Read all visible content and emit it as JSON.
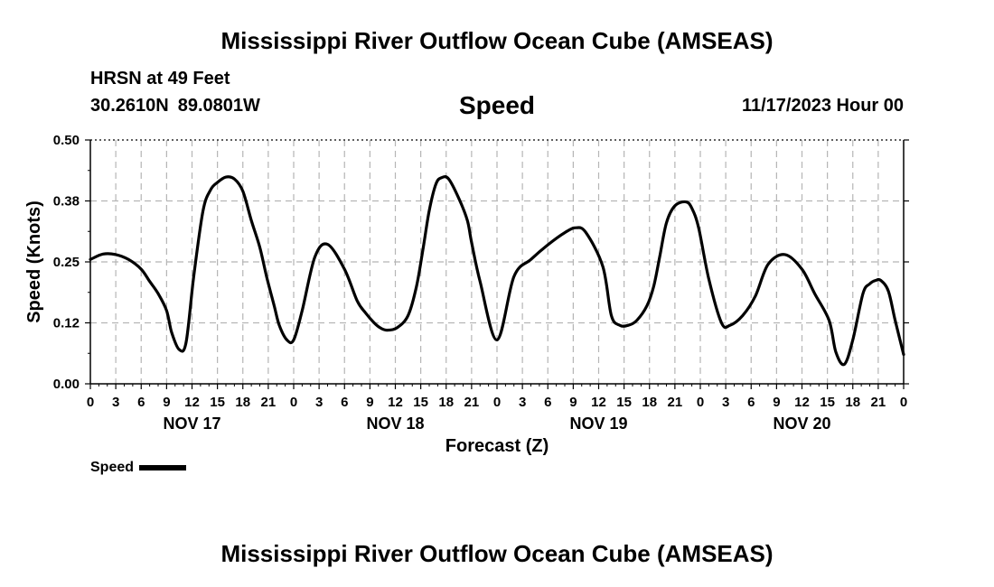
{
  "page": {
    "title_top": "Mississippi River Outflow Ocean Cube (AMSEAS)",
    "title_bottom": "Mississippi River Outflow Ocean Cube (AMSEAS)",
    "station": "HRSN at 49 Feet",
    "latitude": "30.2610N",
    "longitude": "89.0801W",
    "variable": "Speed",
    "datetime": "11/17/2023 Hour 00",
    "legend_label": "Speed"
  },
  "chart_data": {
    "type": "line",
    "title": "Speed",
    "xlabel": "Forecast (Z)",
    "ylabel": "Speed (Knots)",
    "xlim": [
      0,
      96
    ],
    "ylim": [
      0,
      0.5
    ],
    "yticks": [
      0,
      0.125,
      0.25,
      0.375,
      0.5
    ],
    "ytick_labels": [
      "0.00",
      "0.12",
      "0.25",
      "0.38",
      "0.50"
    ],
    "xtick_hours": [
      0,
      3,
      6,
      9,
      12,
      15,
      18,
      21,
      24,
      27,
      30,
      33,
      36,
      39,
      42,
      45,
      48,
      51,
      54,
      57,
      60,
      63,
      66,
      69,
      72,
      75,
      78,
      81,
      84,
      87,
      90,
      93,
      96
    ],
    "xtick_labels": [
      "0",
      "3",
      "6",
      "9",
      "12",
      "15",
      "18",
      "21",
      "0",
      "3",
      "6",
      "9",
      "12",
      "15",
      "18",
      "21",
      "0",
      "3",
      "6",
      "9",
      "12",
      "15",
      "18",
      "21",
      "0",
      "3",
      "6",
      "9",
      "12",
      "15",
      "18",
      "21",
      "0"
    ],
    "date_labels": [
      {
        "hour": 12,
        "label": "NOV 17"
      },
      {
        "hour": 36,
        "label": "NOV 18"
      },
      {
        "hour": 60,
        "label": "NOV 19"
      },
      {
        "hour": 84,
        "label": "NOV 20"
      }
    ],
    "grid": true,
    "legend": "bottom-left",
    "series": [
      {
        "name": "Speed",
        "color": "#000000",
        "x": [
          0,
          1.5,
          3,
          4.5,
          6,
          7,
          8,
          9,
          9.6,
          10.5,
          11.3,
          12.2,
          13.3,
          14.2,
          15,
          16,
          17,
          18,
          19,
          20,
          20.8,
          21.7,
          22.3,
          23.2,
          24,
          25,
          26.5,
          28,
          30,
          31.5,
          32.5,
          33.5,
          34.2,
          35,
          36.2,
          37.5,
          38.5,
          39.3,
          40,
          40.8,
          41.5,
          42.3,
          43.5,
          44.5,
          45,
          46,
          48,
          50,
          52,
          54,
          56,
          57.3,
          58.5,
          60.5,
          61.5,
          62.5,
          63.5,
          64.5,
          65.7,
          66.5,
          67.2,
          68,
          69,
          70.3,
          71,
          71.8,
          73,
          74.5,
          75.5,
          77,
          78.5,
          80,
          82,
          84,
          85.5,
          87.2,
          88,
          89,
          90,
          91.2,
          92,
          92.7,
          93.3,
          94.2,
          95,
          96
        ],
        "y": [
          0.255,
          0.266,
          0.265,
          0.255,
          0.235,
          0.21,
          0.185,
          0.15,
          0.105,
          0.07,
          0.085,
          0.22,
          0.355,
          0.398,
          0.413,
          0.424,
          0.42,
          0.395,
          0.335,
          0.28,
          0.22,
          0.16,
          0.12,
          0.09,
          0.09,
          0.15,
          0.26,
          0.286,
          0.235,
          0.17,
          0.145,
          0.125,
          0.115,
          0.11,
          0.115,
          0.14,
          0.2,
          0.28,
          0.355,
          0.41,
          0.423,
          0.42,
          0.38,
          0.335,
          0.29,
          0.21,
          0.09,
          0.22,
          0.255,
          0.285,
          0.31,
          0.32,
          0.31,
          0.24,
          0.14,
          0.12,
          0.12,
          0.13,
          0.16,
          0.2,
          0.26,
          0.33,
          0.365,
          0.373,
          0.36,
          0.32,
          0.215,
          0.125,
          0.12,
          0.14,
          0.18,
          0.245,
          0.265,
          0.235,
          0.185,
          0.13,
          0.065,
          0.04,
          0.09,
          0.185,
          0.205,
          0.212,
          0.212,
          0.19,
          0.13,
          0.06
        ]
      }
    ]
  }
}
